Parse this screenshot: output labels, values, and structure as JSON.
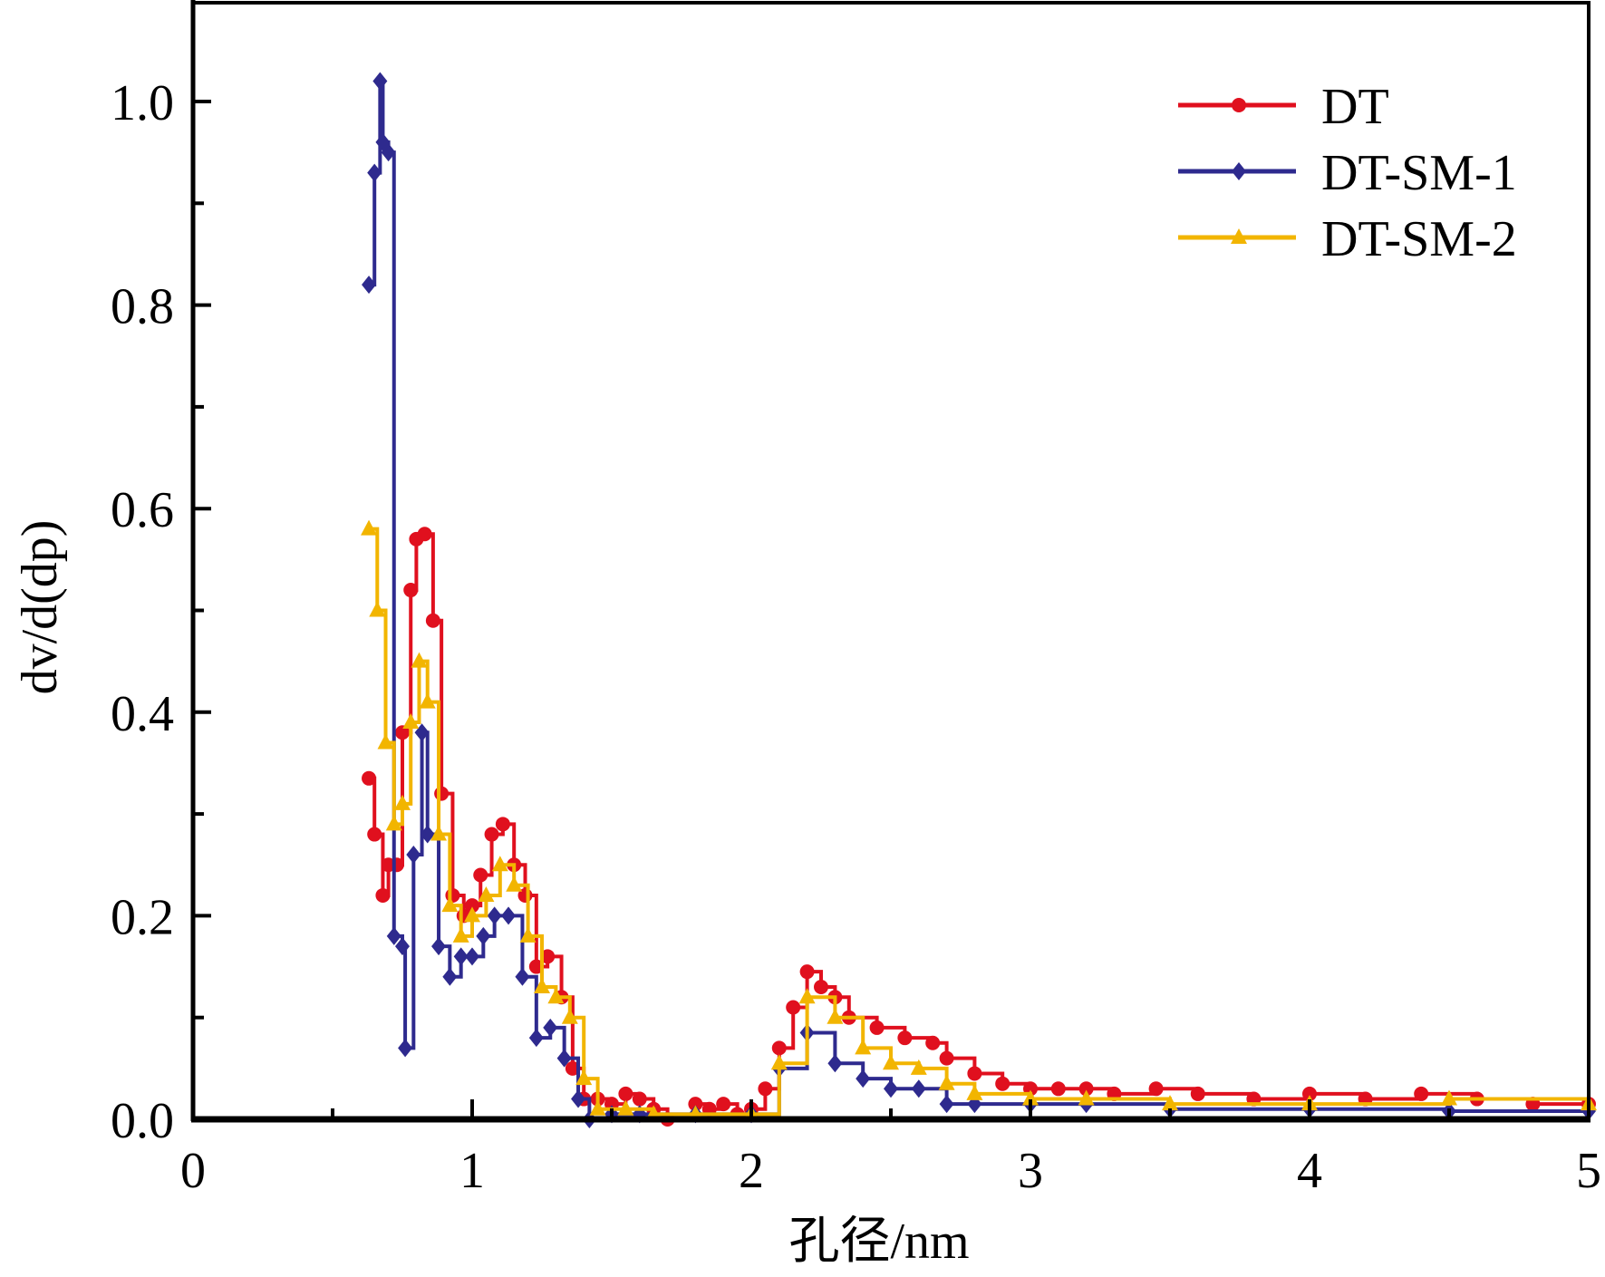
{
  "chart_data": {
    "type": "line",
    "title": "",
    "xlabel": "孔径/nm",
    "ylabel": "dv/d(dp)",
    "xlim": [
      0,
      5
    ],
    "ylim": [
      0,
      1.1
    ],
    "xticks": [
      "0",
      "1",
      "2",
      "3",
      "4",
      "5"
    ],
    "yticks": [
      "0.0",
      "0.2",
      "0.4",
      "0.6",
      "0.8",
      "1.0"
    ],
    "grid": false,
    "legend_position": "top-right",
    "series": [
      {
        "name": "DT",
        "color": "#e0101e",
        "marker": "circle",
        "x": [
          0.63,
          0.65,
          0.68,
          0.7,
          0.73,
          0.75,
          0.78,
          0.8,
          0.83,
          0.86,
          0.89,
          0.93,
          0.97,
          1.0,
          1.03,
          1.07,
          1.11,
          1.15,
          1.19,
          1.23,
          1.27,
          1.32,
          1.36,
          1.4,
          1.45,
          1.5,
          1.55,
          1.6,
          1.65,
          1.7,
          1.8,
          1.85,
          1.9,
          1.95,
          2.0,
          2.05,
          2.1,
          2.15,
          2.2,
          2.25,
          2.3,
          2.35,
          2.45,
          2.55,
          2.65,
          2.7,
          2.8,
          2.9,
          3.0,
          3.1,
          3.2,
          3.3,
          3.45,
          3.6,
          3.8,
          4.0,
          4.2,
          4.4,
          4.6,
          4.8,
          5.0
        ],
        "y": [
          0.335,
          0.28,
          0.22,
          0.25,
          0.25,
          0.38,
          0.52,
          0.57,
          0.575,
          0.49,
          0.32,
          0.22,
          0.2,
          0.21,
          0.24,
          0.28,
          0.29,
          0.25,
          0.22,
          0.15,
          0.16,
          0.12,
          0.05,
          0.02,
          0.02,
          0.015,
          0.025,
          0.02,
          0.01,
          0.0,
          0.015,
          0.01,
          0.015,
          0.005,
          0.01,
          0.03,
          0.07,
          0.11,
          0.145,
          0.13,
          0.12,
          0.1,
          0.09,
          0.08,
          0.075,
          0.06,
          0.045,
          0.035,
          0.03,
          0.03,
          0.03,
          0.025,
          0.03,
          0.025,
          0.02,
          0.025,
          0.02,
          0.025,
          0.02,
          0.015,
          0.015
        ]
      },
      {
        "name": "DT-SM-1",
        "color": "#2e2a8e",
        "marker": "diamond",
        "x": [
          0.63,
          0.65,
          0.67,
          0.68,
          0.7,
          0.72,
          0.75,
          0.76,
          0.79,
          0.82,
          0.84,
          0.88,
          0.92,
          0.96,
          1.0,
          1.04,
          1.08,
          1.13,
          1.18,
          1.23,
          1.28,
          1.33,
          1.38,
          1.42,
          1.5,
          1.6,
          1.8,
          2.0,
          2.1,
          2.2,
          2.3,
          2.4,
          2.5,
          2.6,
          2.7,
          2.8,
          3.0,
          3.2,
          3.5,
          4.0,
          4.5,
          5.0
        ],
        "y": [
          0.82,
          0.93,
          1.02,
          0.96,
          0.95,
          0.18,
          0.17,
          0.07,
          0.26,
          0.38,
          0.28,
          0.17,
          0.14,
          0.16,
          0.16,
          0.18,
          0.2,
          0.2,
          0.14,
          0.08,
          0.09,
          0.06,
          0.02,
          0.0,
          0.005,
          0.005,
          0.005,
          0.005,
          0.05,
          0.085,
          0.055,
          0.04,
          0.03,
          0.03,
          0.015,
          0.015,
          0.015,
          0.015,
          0.01,
          0.01,
          0.008,
          0.008
        ]
      },
      {
        "name": "DT-SM-2",
        "color": "#f2b500",
        "marker": "triangle",
        "x": [
          0.63,
          0.66,
          0.69,
          0.72,
          0.75,
          0.78,
          0.81,
          0.84,
          0.88,
          0.92,
          0.96,
          1.0,
          1.05,
          1.1,
          1.15,
          1.2,
          1.25,
          1.3,
          1.35,
          1.4,
          1.45,
          1.55,
          1.65,
          1.8,
          2.0,
          2.1,
          2.2,
          2.3,
          2.4,
          2.5,
          2.6,
          2.7,
          2.8,
          3.0,
          3.2,
          3.5,
          4.0,
          4.5,
          5.0
        ],
        "y": [
          0.58,
          0.5,
          0.37,
          0.29,
          0.31,
          0.39,
          0.45,
          0.41,
          0.28,
          0.21,
          0.18,
          0.2,
          0.22,
          0.25,
          0.23,
          0.18,
          0.13,
          0.12,
          0.1,
          0.04,
          0.01,
          0.01,
          0.005,
          0.005,
          0.005,
          0.055,
          0.12,
          0.1,
          0.07,
          0.055,
          0.05,
          0.035,
          0.025,
          0.02,
          0.02,
          0.015,
          0.015,
          0.02,
          0.015
        ]
      }
    ]
  }
}
